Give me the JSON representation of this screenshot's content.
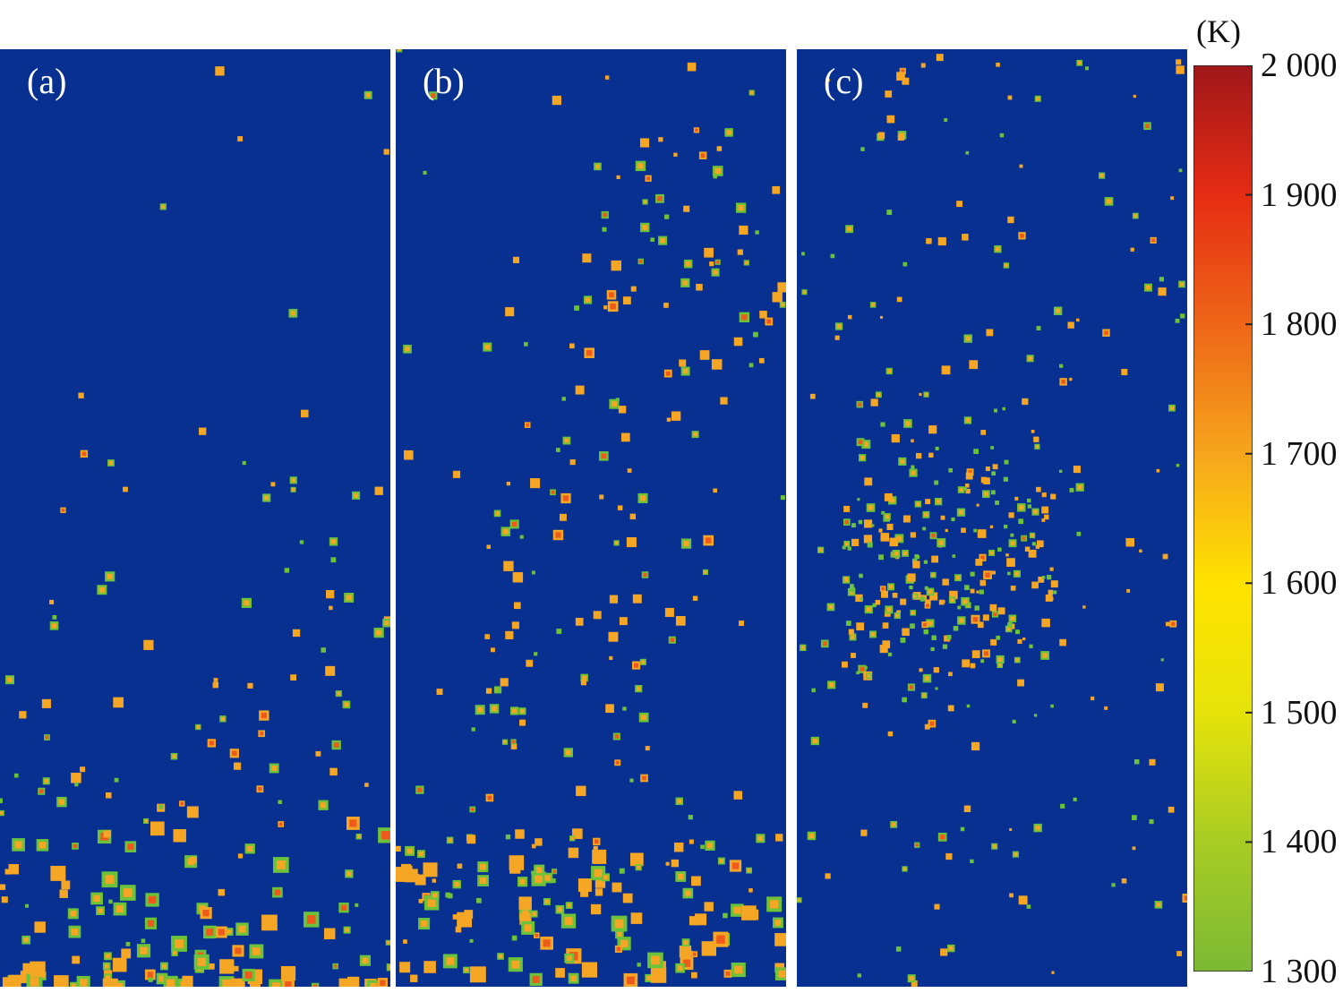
{
  "chart_data": {
    "type": "heatmap",
    "panels": [
      {
        "label": "(a)",
        "description_shown": "hot spots concentrated near bottom"
      },
      {
        "label": "(b)",
        "description_shown": "hot spots along bottom and right diagonal"
      },
      {
        "label": "(c)",
        "description_shown": "hot spots concentrated in central column"
      }
    ],
    "colorbar": {
      "unit": "(K)",
      "min": 1300,
      "max": 2000,
      "ticks": [
        "2 000",
        "1 900",
        "1 800",
        "1 700",
        "1 600",
        "1 500",
        "1 400",
        "1 300"
      ],
      "tick_values": [
        2000,
        1900,
        1800,
        1700,
        1600,
        1500,
        1400,
        1300
      ],
      "colors": [
        "#7cb935",
        "#a8cc24",
        "#e6e30a",
        "#ffe300",
        "#f6a51c",
        "#ee6618",
        "#e52c14",
        "#a0171a"
      ]
    },
    "background_color": "#073090"
  }
}
